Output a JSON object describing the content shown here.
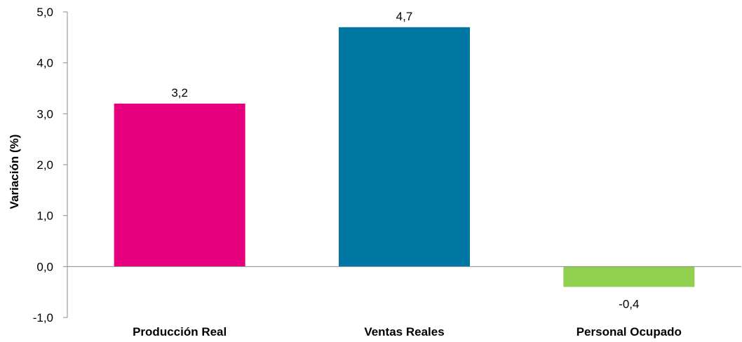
{
  "chart_data": {
    "type": "bar",
    "categories": [
      "Producción Real",
      "Ventas Reales",
      "Personal Ocupado"
    ],
    "values": [
      3.2,
      4.7,
      -0.4
    ],
    "data_labels": [
      "3,2",
      "4,7",
      "-0,4"
    ],
    "colors": [
      "#E6007E",
      "#0077A3",
      "#92D050"
    ],
    "title": "",
    "xlabel": "",
    "ylabel": "Variación (%)",
    "ylim": [
      -1.0,
      5.0
    ],
    "yticks": [
      5.0,
      4.0,
      3.0,
      2.0,
      1.0,
      0.0,
      -1.0
    ],
    "ytick_labels": [
      "5,0",
      "4,0",
      "3,0",
      "2,0",
      "1,0",
      "0,0",
      "-1,0"
    ],
    "grid": false,
    "legend": "none"
  }
}
